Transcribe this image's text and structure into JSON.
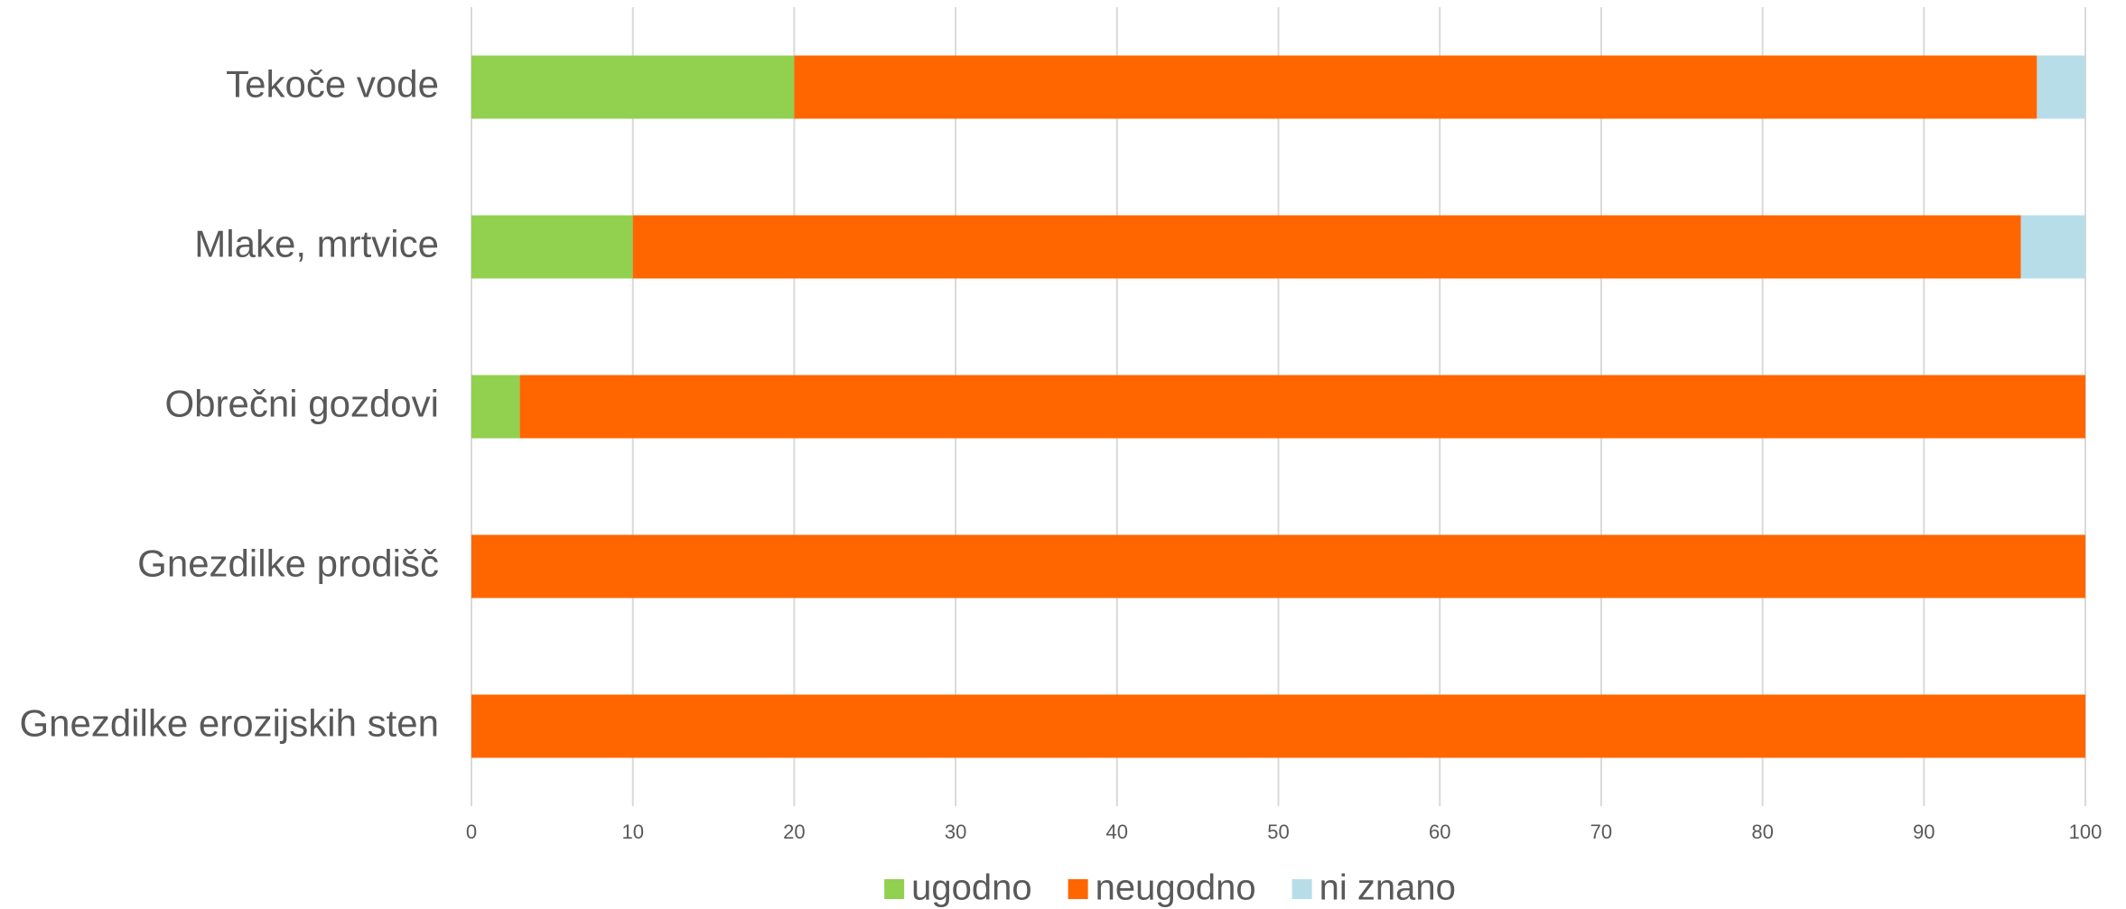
{
  "chart_data": {
    "type": "bar",
    "orientation": "horizontal",
    "stacked": true,
    "categories": [
      "Tekoče vode",
      "Mlake, mrtvice",
      "Obrečni gozdovi",
      "Gnezdilke prodišč",
      "Gnezdilke erozijskih sten"
    ],
    "series": [
      {
        "name": "ugodno",
        "color": "#92d050",
        "values": [
          20,
          10,
          3,
          0,
          0
        ]
      },
      {
        "name": "neugodno",
        "color": "#ff6600",
        "values": [
          77,
          86,
          97,
          100,
          100
        ]
      },
      {
        "name": "ni znano",
        "color": "#b7dde8",
        "values": [
          3,
          4,
          0,
          0,
          0
        ]
      }
    ],
    "xlim": [
      0,
      100
    ],
    "xticks": [
      0,
      10,
      20,
      30,
      40,
      50,
      60,
      70,
      80,
      90,
      100
    ],
    "grid": true,
    "legend": "bottom"
  }
}
